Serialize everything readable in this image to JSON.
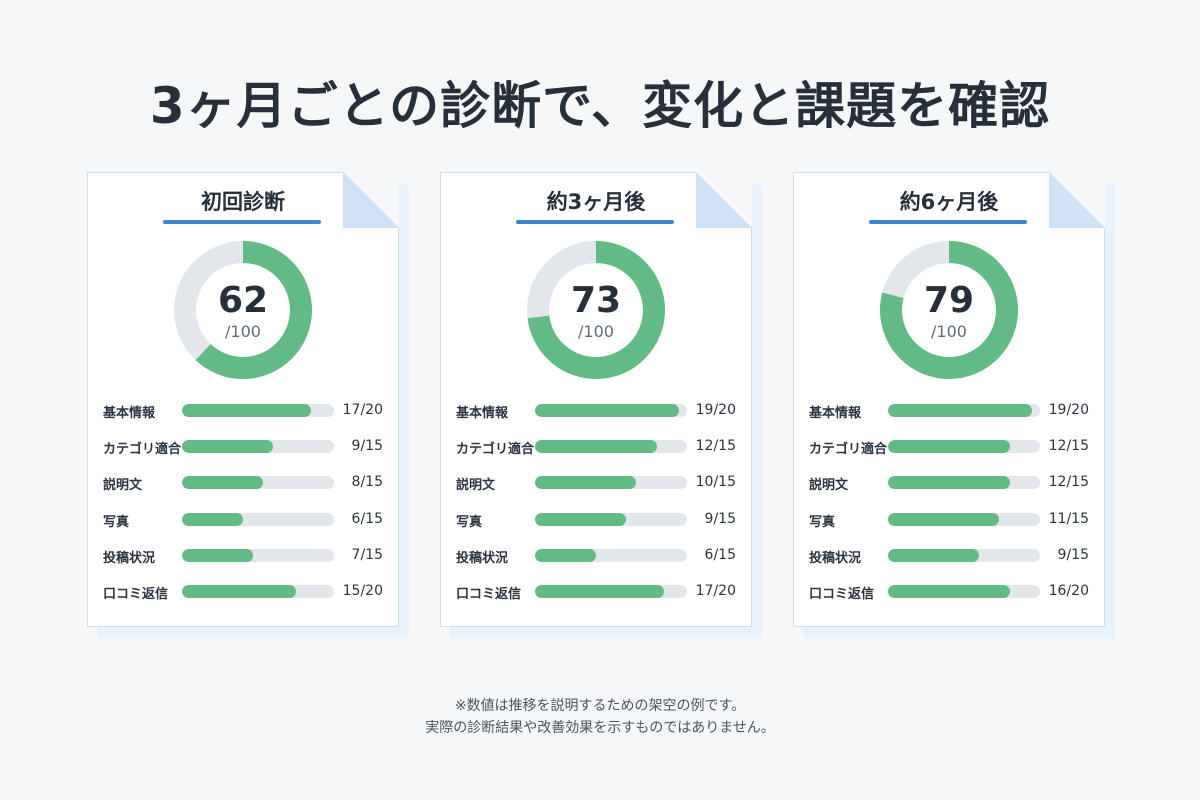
{
  "title": "3ヶ月ごとの診断で、変化と課題を確認",
  "note_lines": [
    "※数値は推移を説明するための架空の例です。",
    "実際の診断結果や改善効果を示すものではありません。"
  ],
  "colors": {
    "bar": "#62bb84",
    "track": "#e3e7ec",
    "accent": "#3c86c9"
  },
  "chart_data": [
    {
      "type": "pie",
      "title": "初回診断",
      "score": "62",
      "score_max": "/100",
      "score_value": 62,
      "max_value": 100,
      "metrics": [
        {
          "label": "基本情報",
          "value": 17,
          "max": 20,
          "text": "17/20"
        },
        {
          "label": "カテゴリ適合",
          "value": 9,
          "max": 15,
          "text": "9/15"
        },
        {
          "label": "説明文",
          "value": 8,
          "max": 15,
          "text": "8/15"
        },
        {
          "label": "写真",
          "value": 6,
          "max": 15,
          "text": "6/15"
        },
        {
          "label": "投稿状況",
          "value": 7,
          "max": 15,
          "text": "7/15"
        },
        {
          "label": "口コミ返信",
          "value": 15,
          "max": 20,
          "text": "15/20"
        }
      ]
    },
    {
      "type": "pie",
      "title": "約3ヶ月後",
      "score": "73",
      "score_max": "/100",
      "score_value": 73,
      "max_value": 100,
      "metrics": [
        {
          "label": "基本情報",
          "value": 19,
          "max": 20,
          "text": "19/20"
        },
        {
          "label": "カテゴリ適合",
          "value": 12,
          "max": 15,
          "text": "12/15"
        },
        {
          "label": "説明文",
          "value": 10,
          "max": 15,
          "text": "10/15"
        },
        {
          "label": "写真",
          "value": 9,
          "max": 15,
          "text": "9/15"
        },
        {
          "label": "投稿状況",
          "value": 6,
          "max": 15,
          "text": "6/15"
        },
        {
          "label": "口コミ返信",
          "value": 17,
          "max": 20,
          "text": "17/20"
        }
      ]
    },
    {
      "type": "pie",
      "title": "約6ヶ月後",
      "score": "79",
      "score_max": "/100",
      "score_value": 79,
      "max_value": 100,
      "metrics": [
        {
          "label": "基本情報",
          "value": 19,
          "max": 20,
          "text": "19/20"
        },
        {
          "label": "カテゴリ適合",
          "value": 12,
          "max": 15,
          "text": "12/15"
        },
        {
          "label": "説明文",
          "value": 12,
          "max": 15,
          "text": "12/15"
        },
        {
          "label": "写真",
          "value": 11,
          "max": 15,
          "text": "11/15"
        },
        {
          "label": "投稿状況",
          "value": 9,
          "max": 15,
          "text": "9/15"
        },
        {
          "label": "口コミ返信",
          "value": 16,
          "max": 20,
          "text": "16/20"
        }
      ]
    }
  ]
}
